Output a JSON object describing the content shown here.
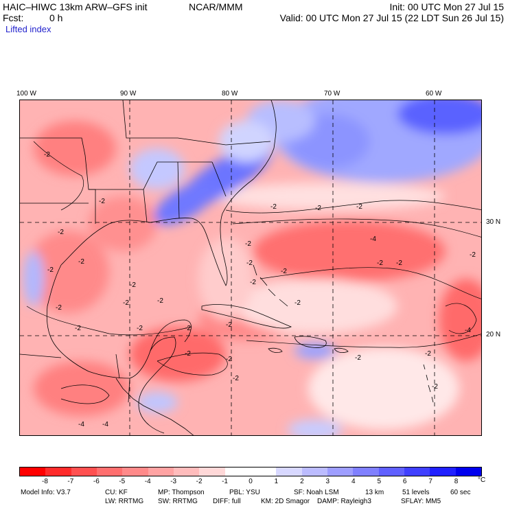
{
  "header": {
    "model": "HAIC–HIWC 13km ARW–GFS init",
    "org": "NCAR/MMM",
    "init": "Init: 00 UTC Mon 27 Jul 15",
    "fcst_label": "Fcst:",
    "fcst_value": "0 h",
    "valid": "Valid: 00 UTC Mon 27 Jul 15 (22 LDT Sun 26 Jul 15)",
    "field": "Lifted index"
  },
  "map": {
    "lon_labels": [
      "100 W",
      "90 W",
      "80 W",
      "70 W",
      "60 W"
    ],
    "lat_labels": [
      "30 N",
      "20 N"
    ],
    "contour_labels": [
      "-2",
      "-2",
      "-2",
      "-2",
      "-2",
      "-2",
      "-2",
      "-2",
      "-2",
      "-2",
      "-2",
      "-2",
      "-2",
      "-2",
      "-2",
      "-2",
      "-2",
      "-2",
      "-2",
      "-2",
      "-2",
      "-2",
      "-2",
      "-2",
      "-2",
      "-2",
      "-4",
      "-4",
      "-4",
      "-4",
      "-2",
      "-2",
      "-2",
      "-2"
    ]
  },
  "colorbar": {
    "colors": [
      "#ff0000",
      "#ff2b2b",
      "#ff5050",
      "#ff6f6f",
      "#ff8a8a",
      "#ffa3a3",
      "#ffbcbc",
      "#ffd8d8",
      "#ffffff",
      "#ffffff",
      "#d8d8ff",
      "#bcbcff",
      "#9e9eff",
      "#8080ff",
      "#6060ff",
      "#4040ff",
      "#2020ff",
      "#0000ee"
    ],
    "ticks": [
      "-8",
      "-7",
      "-6",
      "-5",
      "-4",
      "-3",
      "-2",
      "-1",
      "0",
      "1",
      "2",
      "3",
      "4",
      "5",
      "6",
      "7",
      "8"
    ],
    "unit": "°C"
  },
  "footer": {
    "line1": [
      "Model Info: V3.7",
      "CU: KF",
      "MP: Thompson",
      "PBL: YSU",
      "SF: Noah LSM",
      "13 km",
      "51 levels",
      "60 sec"
    ],
    "line2": [
      "LW: RRTMG",
      "SW: RRTMG",
      "DIFF: full",
      "KM: 2D Smagor",
      "DAMP: Rayleigh3",
      "SFLAY: MM5"
    ]
  }
}
